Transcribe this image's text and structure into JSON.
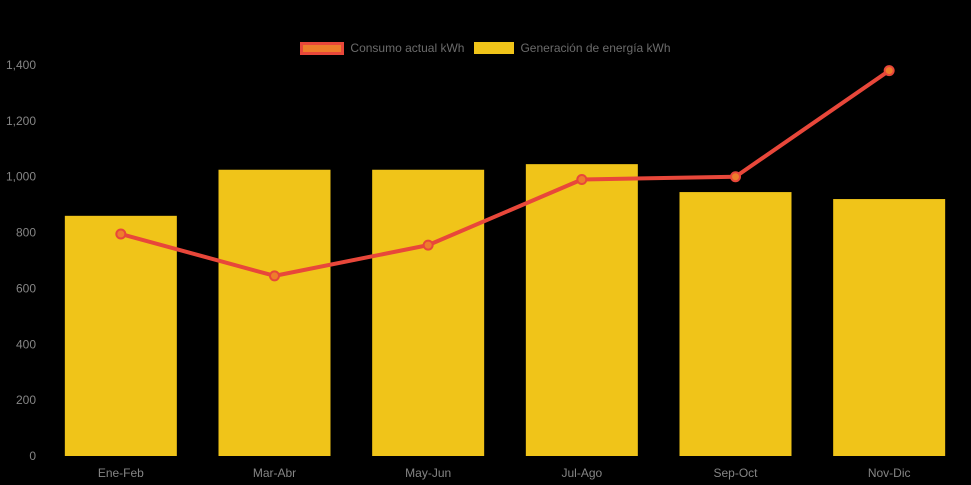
{
  "background_color": "#000000",
  "legend": {
    "position": "top",
    "text_color": "#6b6b6b",
    "items": [
      {
        "label": "Consumo actual kWh",
        "swatch_fill": "#ee7d2b",
        "swatch_border": "#e8473a"
      },
      {
        "label": "Generación de energía kWh",
        "swatch_fill": "#f0c419",
        "swatch_border": "#f0c419"
      }
    ]
  },
  "chart_data": {
    "type": "bar",
    "title": "",
    "xlabel": "",
    "ylabel": "",
    "categories": [
      "Ene-Feb",
      "Mar-Abr",
      "May-Jun",
      "Jul-Ago",
      "Sep-Oct",
      "Nov-Dic"
    ],
    "series": [
      {
        "name": "Consumo actual kWh",
        "type": "line",
        "values": [
          795,
          645,
          755,
          990,
          1000,
          1380
        ],
        "line_color": "#e8473a",
        "point_fill": "#ee7d2b",
        "point_border": "#e8473a"
      },
      {
        "name": "Generación de energía kWh",
        "type": "bar",
        "values": [
          860,
          1025,
          1025,
          1045,
          945,
          920
        ],
        "color": "#f0c419"
      }
    ],
    "ylim": [
      0,
      1400
    ],
    "ytick_step": 200,
    "ytick_labels": [
      "0",
      "200",
      "400",
      "600",
      "800",
      "1,000",
      "1,200",
      "1,400"
    ],
    "tick_color": "#858585",
    "grid": false,
    "legend_position": "top"
  }
}
